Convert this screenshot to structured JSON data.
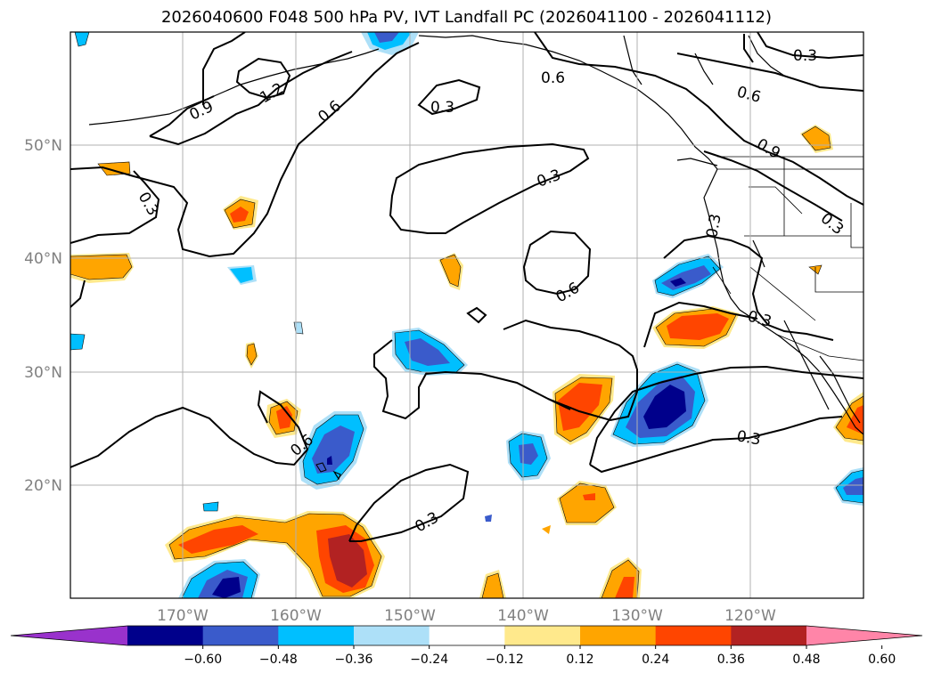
{
  "title": "2026040600 F048 500 hPa PV, IVT Landfall PC (2026041100 - 2026041112)",
  "axes": {
    "lat_labels": [
      "50°N",
      "40°N",
      "30°N",
      "20°N"
    ],
    "lon_labels": [
      "170°W",
      "160°W",
      "150°W",
      "140°W",
      "130°W",
      "120°W"
    ]
  },
  "contour_labels": [
    "0.3",
    "0.6",
    "0.9",
    "1.2"
  ],
  "colorbar": {
    "ticks": [
      "−0.60",
      "−0.48",
      "−0.36",
      "−0.24",
      "−0.12",
      "0.12",
      "0.24",
      "0.36",
      "0.48",
      "0.60"
    ],
    "colors": [
      "#9932CC",
      "#00008B",
      "#3A5BCB",
      "#00BFFF",
      "#ADE0F8",
      "#FFFFFF",
      "#FFE98C",
      "#FFA500",
      "#FF4500",
      "#B22222",
      "#FF85A8"
    ]
  }
}
